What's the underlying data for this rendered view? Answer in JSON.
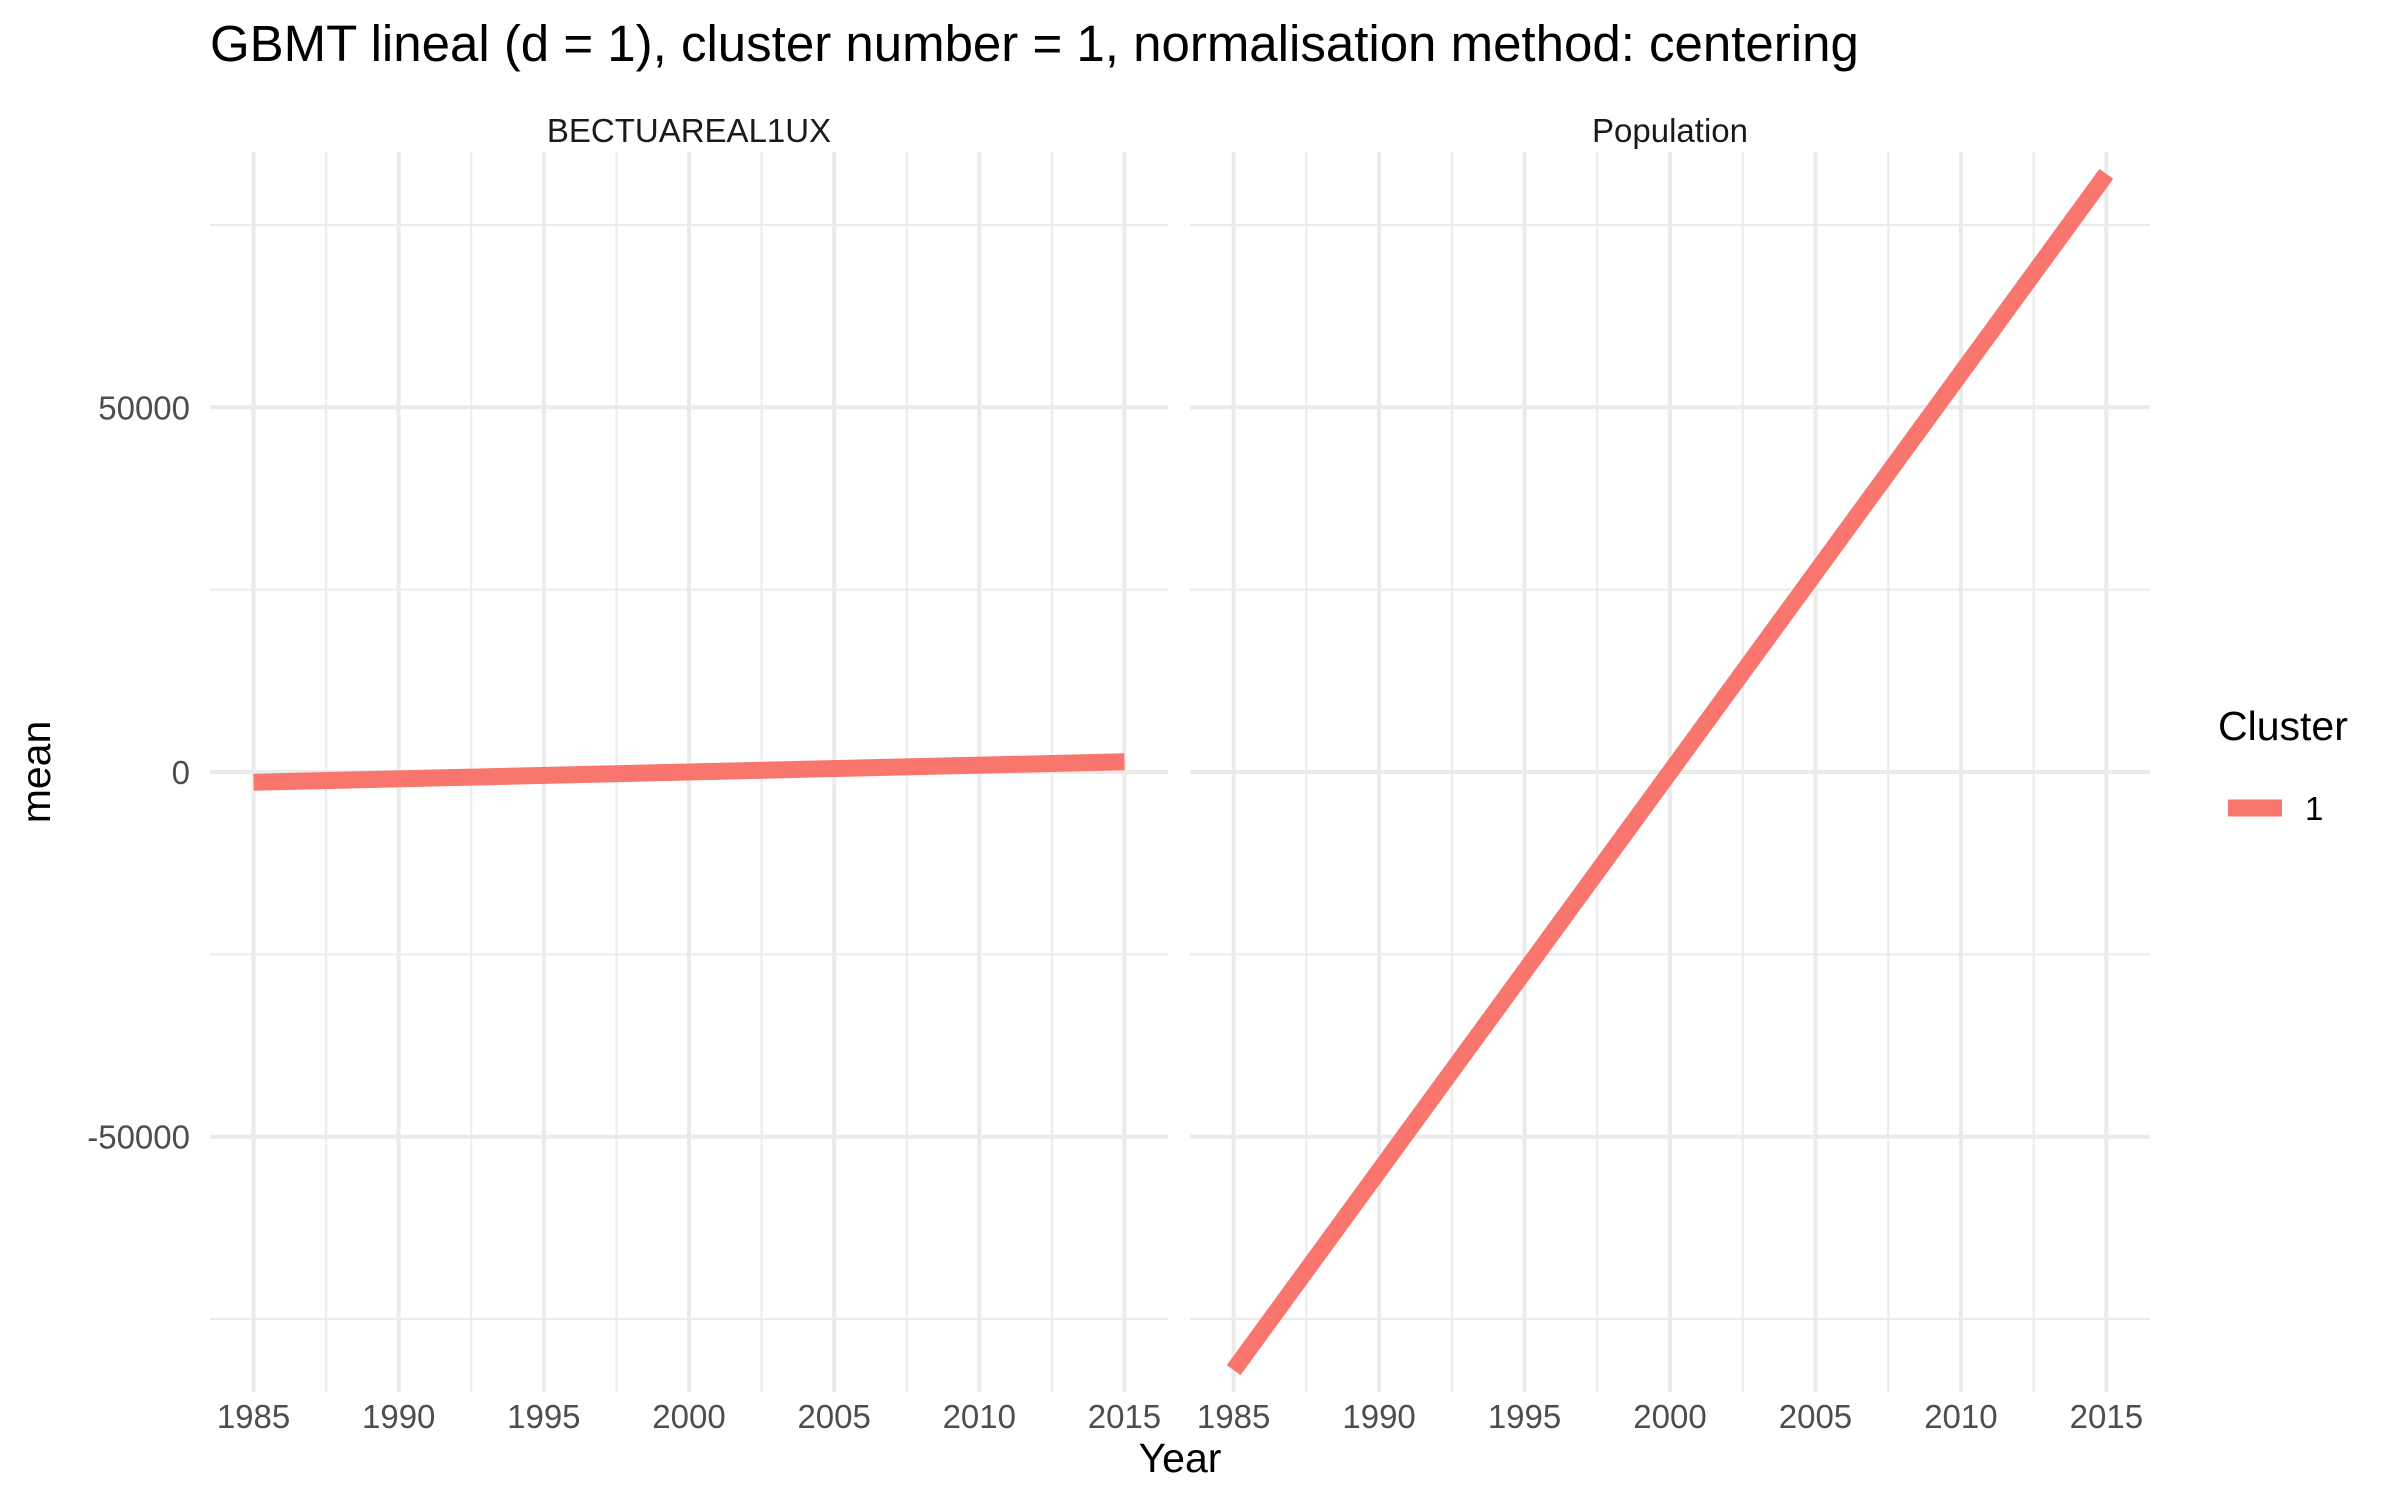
{
  "chart_data": {
    "type": "line",
    "title": "GBMT lineal (d = 1), cluster number = 1, normalisation method: centering",
    "xlabel": "Year",
    "ylabel": "mean",
    "xlim": [
      1985,
      2015
    ],
    "ylim": [
      -85000,
      85000
    ],
    "x_ticks": [
      1985,
      1990,
      1995,
      2000,
      2005,
      2010,
      2015
    ],
    "y_ticks": [
      -50000,
      0,
      50000
    ],
    "y_tick_labels": [
      "-50000",
      "0",
      "50000"
    ],
    "grid": true,
    "legend": {
      "title": "Cluster",
      "position": "right",
      "entries": [
        {
          "label": "1",
          "color": "#F8766D"
        }
      ]
    },
    "panels": [
      {
        "strip": "BECTUAREAL1UX",
        "series": [
          {
            "cluster": "1",
            "color": "#F8766D",
            "x": [
              1985,
              2015
            ],
            "y": [
              -1400,
              1400
            ]
          }
        ]
      },
      {
        "strip": "Population",
        "series": [
          {
            "cluster": "1",
            "color": "#F8766D",
            "x": [
              1985,
              2015
            ],
            "y": [
              -82000,
              82000
            ]
          }
        ]
      }
    ]
  }
}
